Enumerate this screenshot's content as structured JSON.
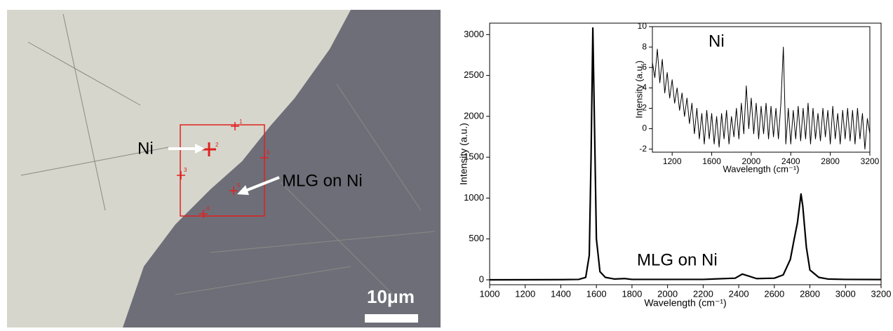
{
  "micrograph": {
    "label_ni": "Ni",
    "label_mlg": "MLG on Ni",
    "point_numbers": [
      "1",
      "2",
      "3",
      "4",
      "5",
      "6"
    ],
    "scale_bar": "10μm"
  },
  "chart_data": [
    {
      "type": "line",
      "xlabel": "Wavelength (cm⁻¹)",
      "ylabel": "Intensity (a.u.)",
      "annotation": "MLG on Ni",
      "xlim": [
        1000,
        3200
      ],
      "ylim": [
        -60,
        3140
      ],
      "xticks": [
        1000,
        1200,
        1400,
        1600,
        1800,
        2000,
        2200,
        2400,
        2600,
        2800,
        3000,
        3200
      ],
      "yticks": [
        0,
        500,
        1000,
        1500,
        2000,
        2500,
        3000
      ],
      "x": [
        1000,
        1400,
        1500,
        1540,
        1560,
        1570,
        1580,
        1590,
        1600,
        1620,
        1650,
        1700,
        1760,
        1800,
        2000,
        2200,
        2380,
        2420,
        2450,
        2500,
        2600,
        2650,
        2690,
        2710,
        2730,
        2750,
        2760,
        2780,
        2800,
        2850,
        2900,
        3000,
        3200
      ],
      "series": [
        {
          "color": "#000000",
          "values": [
            0,
            2,
            5,
            30,
            300,
            1500,
            3080,
            1800,
            500,
            100,
            30,
            10,
            15,
            5,
            5,
            5,
            20,
            70,
            50,
            15,
            20,
            60,
            250,
            480,
            700,
            1050,
            900,
            400,
            120,
            30,
            10,
            5,
            3
          ]
        }
      ]
    },
    {
      "type": "line",
      "xlabel": "Wavelength (cm⁻¹)",
      "ylabel": "Intensity (a.u.)",
      "annotation": "Ni",
      "xlim": [
        1000,
        3200
      ],
      "ylim": [
        -2.3,
        10
      ],
      "xticks": [
        1200,
        1600,
        2000,
        2400,
        2800,
        3200
      ],
      "yticks": [
        -2,
        0,
        2,
        4,
        6,
        8,
        10
      ],
      "x": [
        1000,
        1025,
        1050,
        1075,
        1100,
        1125,
        1150,
        1175,
        1200,
        1225,
        1250,
        1275,
        1300,
        1325,
        1350,
        1375,
        1400,
        1425,
        1450,
        1475,
        1500,
        1525,
        1550,
        1575,
        1600,
        1625,
        1650,
        1675,
        1700,
        1725,
        1750,
        1775,
        1800,
        1825,
        1850,
        1875,
        1900,
        1925,
        1950,
        1975,
        2000,
        2025,
        2050,
        2075,
        2100,
        2125,
        2150,
        2175,
        2200,
        2225,
        2250,
        2275,
        2300,
        2325,
        2350,
        2375,
        2400,
        2425,
        2450,
        2475,
        2500,
        2525,
        2550,
        2575,
        2600,
        2625,
        2650,
        2675,
        2700,
        2725,
        2750,
        2775,
        2800,
        2825,
        2850,
        2875,
        2900,
        2925,
        2950,
        2975,
        3000,
        3025,
        3050,
        3075,
        3100,
        3125,
        3150,
        3175,
        3200
      ],
      "series": [
        {
          "color": "#000000",
          "values": [
            6.5,
            5,
            7.8,
            4.5,
            6.8,
            3.5,
            5.5,
            3,
            4.8,
            2.5,
            4,
            1.8,
            3.5,
            1.2,
            3,
            0.5,
            2.5,
            -0.5,
            2,
            -1,
            1.5,
            -1.5,
            1.8,
            -1,
            1.5,
            -1.5,
            1.2,
            -1.8,
            1.5,
            -1,
            1.8,
            -1.5,
            1.2,
            -0.8,
            2,
            -1,
            2.5,
            -0.5,
            4.2,
            0,
            3,
            -0.5,
            2.5,
            -1,
            2.2,
            -0.5,
            2.5,
            -1,
            2.2,
            -0.8,
            2,
            -1,
            2.5,
            8,
            -1.5,
            2,
            -1.5,
            1.8,
            -1,
            2.2,
            -1.2,
            2,
            -1,
            2.5,
            -1.5,
            2,
            -1,
            1.5,
            -1.2,
            2,
            -0.8,
            1.8,
            -1.5,
            2.2,
            -1,
            1.5,
            -1.5,
            1.8,
            -1,
            2,
            -1.2,
            1.8,
            -1.5,
            2,
            -1,
            1.5,
            -2,
            1,
            -0.5
          ]
        }
      ]
    }
  ]
}
